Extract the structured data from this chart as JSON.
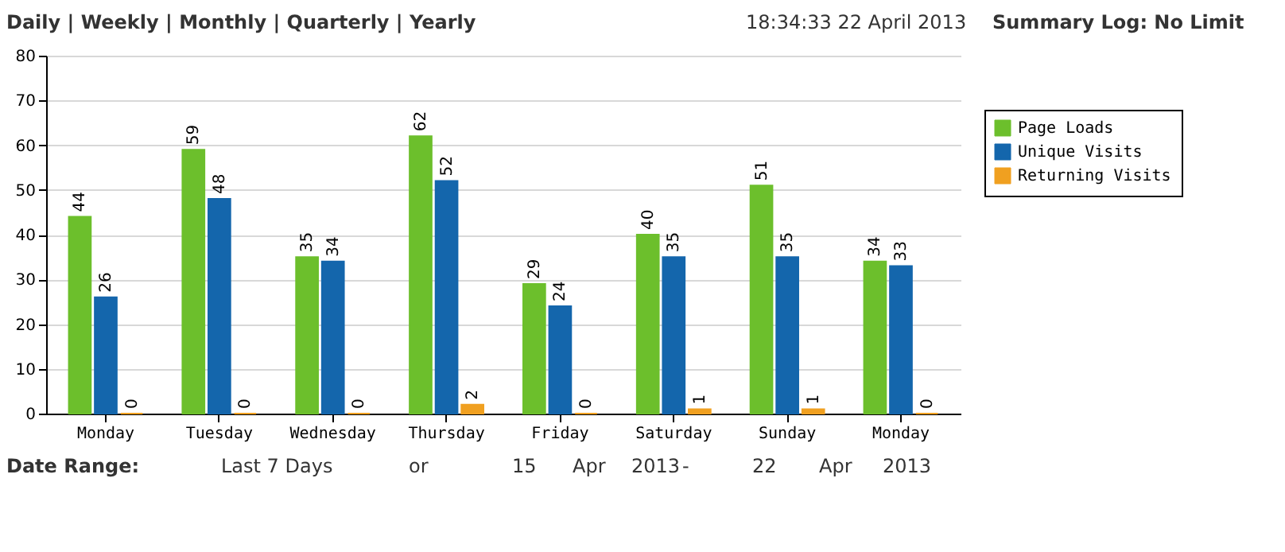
{
  "chart_data": {
    "type": "bar",
    "categories": [
      "Monday",
      "Tuesday",
      "Wednesday",
      "Thursday",
      "Friday",
      "Saturday",
      "Sunday",
      "Monday"
    ],
    "series": [
      {
        "name": "Page Loads",
        "color": "#6cbf2c",
        "values": [
          44,
          59,
          35,
          62,
          29,
          40,
          51,
          34
        ]
      },
      {
        "name": "Unique Visits",
        "color": "#1466ac",
        "values": [
          26,
          48,
          34,
          52,
          24,
          35,
          35,
          33
        ]
      },
      {
        "name": "Returning Visits",
        "color": "#f0a020",
        "values": [
          0,
          0,
          0,
          2,
          0,
          1,
          1,
          0
        ]
      }
    ],
    "ylim": [
      0,
      80
    ],
    "yticks": [
      0,
      10,
      20,
      30,
      40,
      50,
      60,
      70,
      80
    ],
    "grid": "y",
    "legend": "right",
    "data_labels": true,
    "annotations": [
      "Daily | Weekly | Monthly | Quarterly | Yearly",
      "18:34:33  22 April 2013",
      "Summary Log: No Limit",
      "Date Range:",
      "Last 7 Days",
      "or",
      "15",
      "Apr",
      "2013",
      "-",
      "22",
      "Apr",
      "2013"
    ]
  }
}
